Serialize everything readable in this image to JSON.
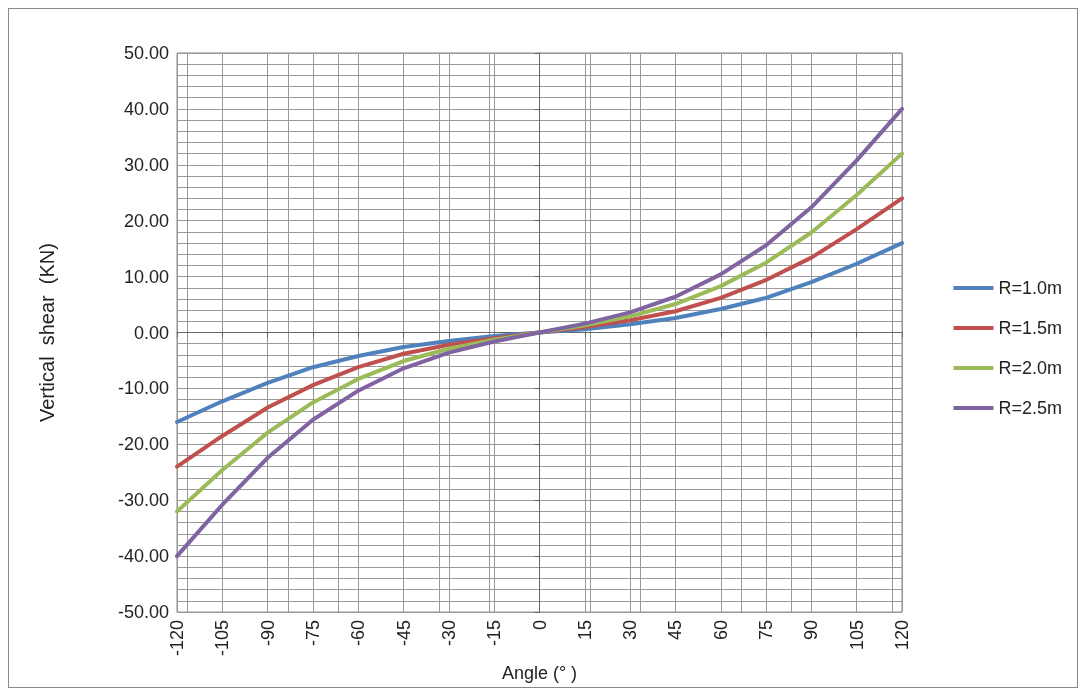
{
  "chart_data": {
    "type": "line",
    "xlabel": "Angle (° )",
    "ylabel": "Vertical  shear  (KN)",
    "x": [
      -120,
      -105,
      -90,
      -75,
      -60,
      -45,
      -30,
      -15,
      0,
      15,
      30,
      45,
      60,
      75,
      90,
      105,
      120
    ],
    "series": [
      {
        "name": "R=1.0m",
        "color": "#4f81bd",
        "values": [
          -16,
          -12.3,
          -9.0,
          -6.2,
          -4.2,
          -2.6,
          -1.5,
          -0.6,
          0,
          0.6,
          1.5,
          2.6,
          4.2,
          6.2,
          9.0,
          12.3,
          16
        ]
      },
      {
        "name": "R=1.5m",
        "color": "#c0504d",
        "values": [
          -24,
          -18.5,
          -13.4,
          -9.4,
          -6.2,
          -3.8,
          -2.2,
          -1.0,
          0,
          1.0,
          2.2,
          3.8,
          6.2,
          9.4,
          13.4,
          18.5,
          24
        ]
      },
      {
        "name": "R=2.0m",
        "color": "#9bbb59",
        "values": [
          -32,
          -24.6,
          -17.9,
          -12.5,
          -8.3,
          -5.1,
          -2.9,
          -1.3,
          0,
          1.3,
          2.9,
          5.1,
          8.3,
          12.5,
          17.9,
          24.6,
          32
        ]
      },
      {
        "name": "R=2.5m",
        "color": "#8064a2",
        "values": [
          -40,
          -30.8,
          -22.4,
          -15.6,
          -10.4,
          -6.4,
          -3.6,
          -1.6,
          0,
          1.6,
          3.6,
          6.4,
          10.4,
          15.6,
          22.4,
          30.8,
          40
        ]
      }
    ],
    "xlim": [
      -120,
      120
    ],
    "xticks": [
      -120,
      -105,
      -90,
      -75,
      -60,
      -45,
      -30,
      -15,
      0,
      15,
      30,
      45,
      60,
      75,
      90,
      105,
      120
    ],
    "ylim": [
      -50,
      50
    ],
    "yticks": [
      {
        "value": -50,
        "label": "-50.00"
      },
      {
        "value": -40,
        "label": "-40.00"
      },
      {
        "value": -30,
        "label": "-30.00"
      },
      {
        "value": -20,
        "label": "-20.00"
      },
      {
        "value": -10,
        "label": "-10.00"
      },
      {
        "value": 0,
        "label": "0.00"
      },
      {
        "value": 10,
        "label": "10.00"
      },
      {
        "value": 20,
        "label": "20.00"
      },
      {
        "value": 30,
        "label": "30.00"
      },
      {
        "value": 40,
        "label": "40.00"
      },
      {
        "value": 50,
        "label": "50.00"
      }
    ],
    "grid": true,
    "legend": "right",
    "marker": "none",
    "line_style": "solid"
  }
}
